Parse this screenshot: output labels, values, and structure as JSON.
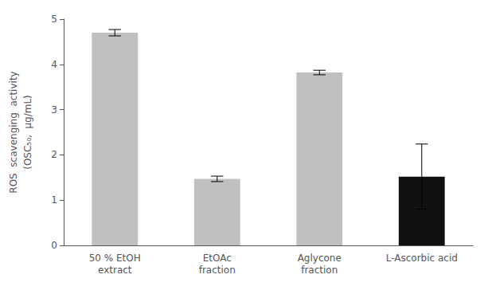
{
  "chart_data": {
    "type": "bar",
    "categories": [
      "50 % EtOH\nextract",
      "EtOAc\nfraction",
      "Aglycone\nfraction",
      "L-Ascorbic acid"
    ],
    "values": [
      4.7,
      1.47,
      3.82,
      1.52
    ],
    "errors": [
      0.07,
      0.06,
      0.05,
      0.72
    ],
    "colors": [
      "#c0c0c0",
      "#c0c0c0",
      "#c0c0c0",
      "#111111"
    ],
    "y_label": "ROS  scavenging  activity\n(OSC₅₀,  μg/mL)",
    "ylim": [
      0,
      5
    ],
    "yticks": [
      0,
      1,
      2,
      3,
      4,
      5
    ],
    "grid": false
  }
}
